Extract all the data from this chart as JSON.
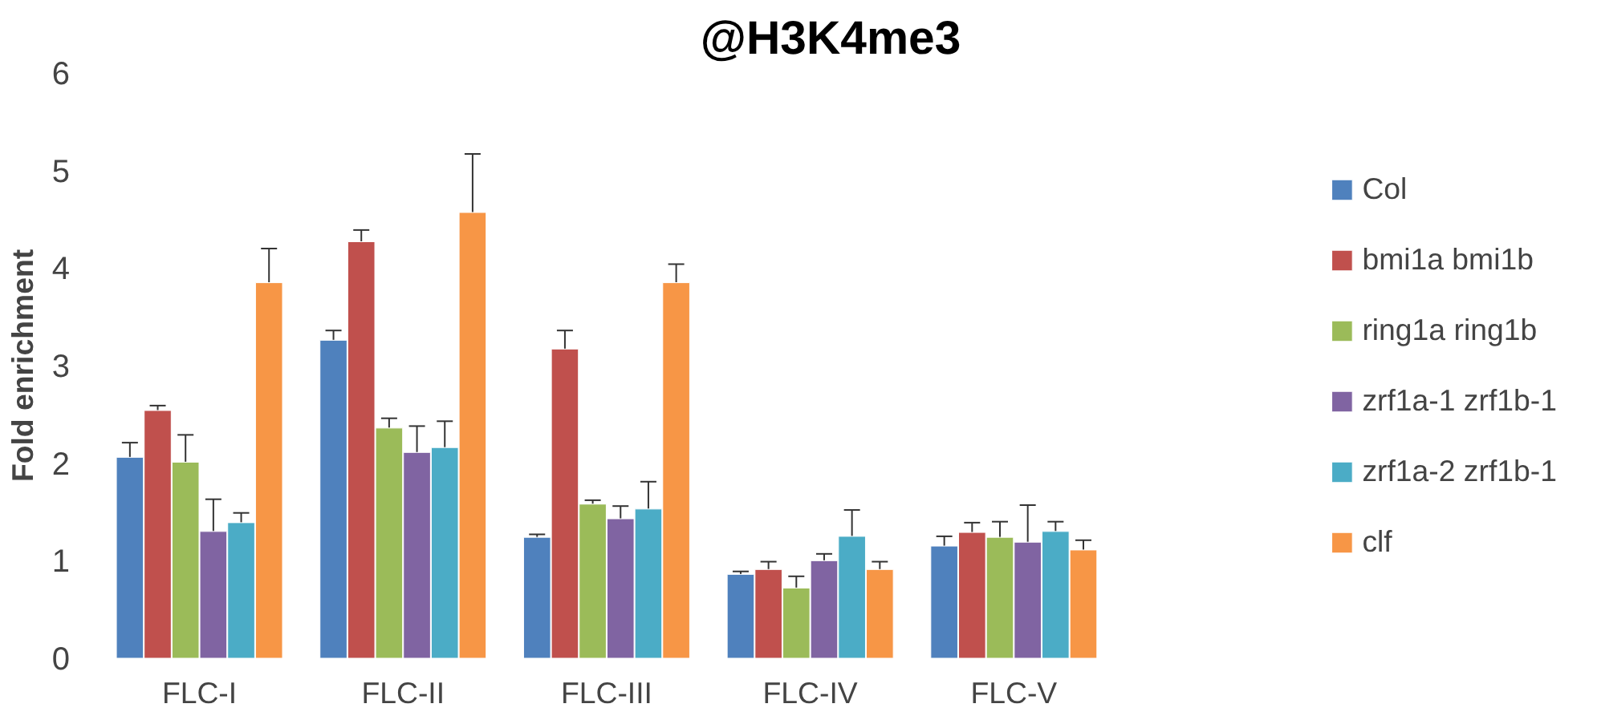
{
  "chart_data": {
    "type": "bar",
    "title": "@H3K4me3",
    "ylabel": "Fold enrichment",
    "categories": [
      "FLC-I",
      "FLC-II",
      "FLC-III",
      "FLC-IV",
      "FLC-V"
    ],
    "ylim": [
      0,
      6
    ],
    "yticks": [
      0,
      1,
      2,
      3,
      4,
      5,
      6
    ],
    "grid": false,
    "legend": "right",
    "series": [
      {
        "name": "Col",
        "color": "#4f81bd",
        "values": [
          2.06,
          3.26,
          1.24,
          0.86,
          1.15
        ],
        "errors": [
          0.15,
          0.1,
          0.03,
          0.03,
          0.1
        ]
      },
      {
        "name": "bmi1a bmi1b",
        "color": "#c0504d",
        "values": [
          2.54,
          4.27,
          3.17,
          0.91,
          1.29
        ],
        "errors": [
          0.05,
          0.12,
          0.19,
          0.08,
          0.1
        ]
      },
      {
        "name": "ring1a ring1b",
        "color": "#9bbb59",
        "values": [
          2.01,
          2.36,
          1.58,
          0.72,
          1.24
        ],
        "errors": [
          0.28,
          0.1,
          0.04,
          0.12,
          0.16
        ]
      },
      {
        "name": "zrf1a-1 zrf1b-1",
        "color": "#8064a2",
        "values": [
          1.3,
          2.11,
          1.43,
          1.0,
          1.19
        ],
        "errors": [
          0.33,
          0.27,
          0.13,
          0.07,
          0.38
        ]
      },
      {
        "name": "zrf1a-2 zrf1b-1",
        "color": "#4bacc6",
        "values": [
          1.39,
          2.16,
          1.53,
          1.25,
          1.3
        ],
        "errors": [
          0.1,
          0.27,
          0.28,
          0.27,
          0.1
        ]
      },
      {
        "name": "clf",
        "color": "#f79646",
        "values": [
          3.85,
          4.57,
          3.85,
          0.91,
          1.11
        ],
        "errors": [
          0.35,
          0.6,
          0.19,
          0.08,
          0.1
        ]
      }
    ]
  }
}
